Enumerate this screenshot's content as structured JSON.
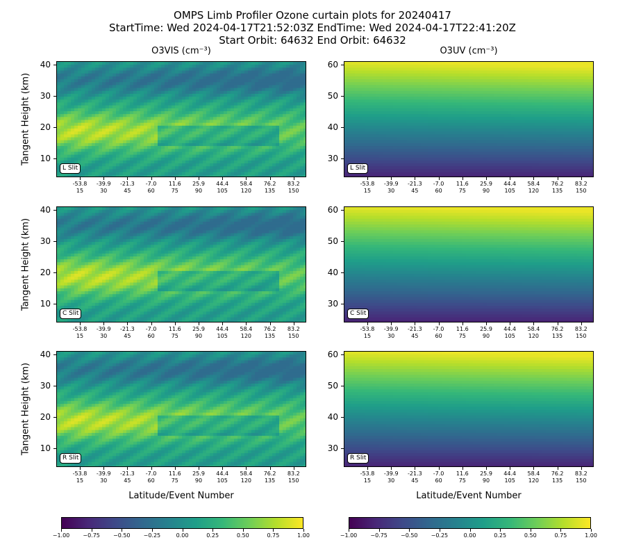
{
  "figure": {
    "title_line1": "OMPS Limb Profiler Ozone curtain plots for 20240417",
    "title_line2": "StartTime: Wed 2024-04-17T21:52:03Z  EndTime: Wed 2024-04-17T22:41:20Z",
    "title_line3": "Start Orbit: 64632 End Orbit: 64632",
    "col1_title": "O3VIS (cm⁻³)",
    "col2_title": "O3UV (cm⁻³)",
    "ylabel": "Tangent Height (km)",
    "xlabel": "Latitude/Event Number"
  },
  "chart_data": [
    {
      "type": "heatmap",
      "panel": "O3VIS",
      "slit": "L Slit",
      "ylim": [
        4,
        41
      ],
      "yticks": [
        "10",
        "20",
        "30",
        "40"
      ]
    },
    {
      "type": "heatmap",
      "panel": "O3UV",
      "slit": "L Slit",
      "ylim": [
        24,
        61
      ],
      "yticks": [
        "30",
        "40",
        "50",
        "60"
      ]
    },
    {
      "type": "heatmap",
      "panel": "O3VIS",
      "slit": "C Slit",
      "ylim": [
        4,
        41
      ],
      "yticks": [
        "10",
        "20",
        "30",
        "40"
      ]
    },
    {
      "type": "heatmap",
      "panel": "O3UV",
      "slit": "C Slit",
      "ylim": [
        24,
        61
      ],
      "yticks": [
        "30",
        "40",
        "50",
        "60"
      ]
    },
    {
      "type": "heatmap",
      "panel": "O3VIS",
      "slit": "R Slit",
      "ylim": [
        4,
        41
      ],
      "yticks": [
        "10",
        "20",
        "30",
        "40"
      ]
    },
    {
      "type": "heatmap",
      "panel": "O3UV",
      "slit": "R Slit",
      "ylim": [
        24,
        61
      ],
      "yticks": [
        "30",
        "40",
        "50",
        "60"
      ]
    }
  ],
  "xticks": {
    "latitudes": [
      "-53.8",
      "-39.9",
      "-21.3",
      "-7.0",
      "11.6",
      "25.9",
      "44.4",
      "58.4",
      "76.2",
      "83.2"
    ],
    "events": [
      "15",
      "30",
      "45",
      "60",
      "75",
      "90",
      "105",
      "120",
      "135",
      "150"
    ]
  },
  "colorbar": {
    "colormap": "viridis",
    "range": [
      -1.0,
      1.0
    ],
    "ticks": [
      "−1.00",
      "−0.75",
      "−0.50",
      "−0.25",
      "0.00",
      "0.25",
      "0.50",
      "0.75",
      "1.00"
    ]
  }
}
